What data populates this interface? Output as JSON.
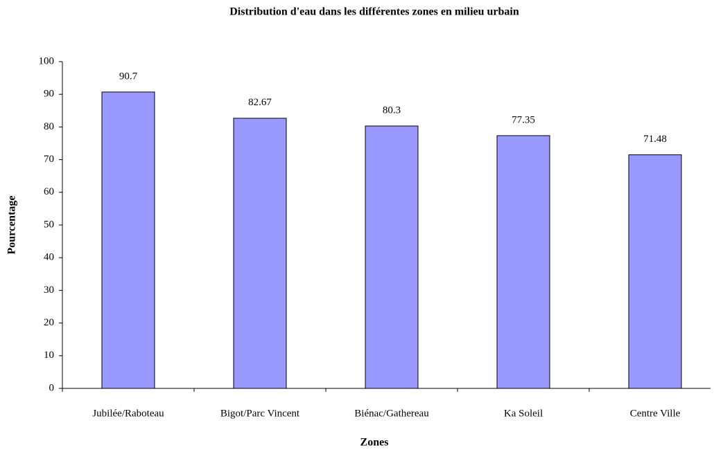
{
  "chart_data": {
    "type": "bar",
    "title": "Distribution d'eau dans les différentes zones en milieu urbain",
    "x_label": "Zones",
    "y_label": "Pourcentage",
    "categories": [
      "Jubilée/Raboteau",
      "Bigot/Parc Vincent",
      "Biénac/Gathereau",
      "Ka Soleil",
      "Centre Ville"
    ],
    "values": [
      90.7,
      82.67,
      80.3,
      77.35,
      71.48
    ],
    "color": "#9999ff",
    "ylim": [
      0,
      100
    ],
    "yticks": [
      0,
      10,
      20,
      30,
      40,
      50,
      60,
      70,
      80,
      90,
      100
    ],
    "grid": false
  }
}
